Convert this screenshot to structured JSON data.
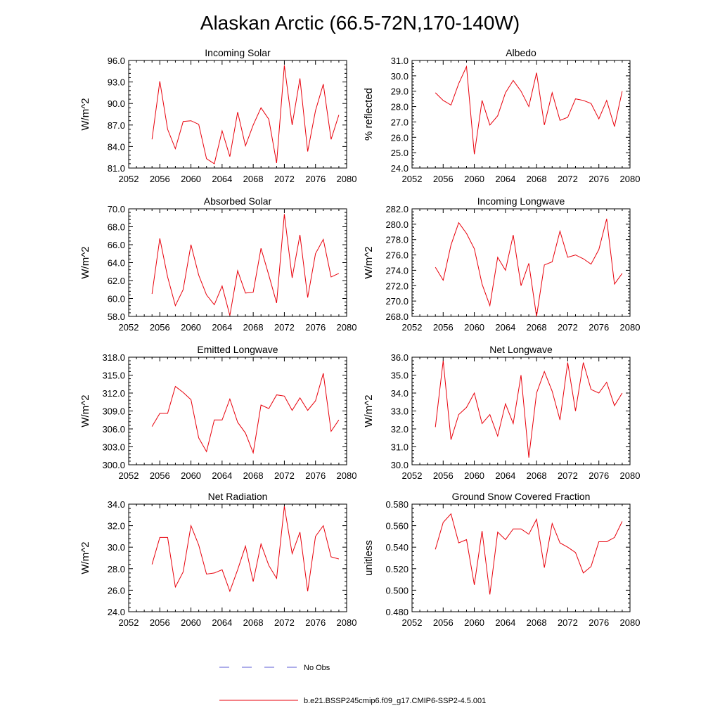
{
  "figure": {
    "title": "Alaskan Arctic (66.5-72N,170-140W)",
    "legend": [
      {
        "label": "No Obs",
        "color": "#5b5bd6",
        "style": "dashed"
      },
      {
        "label": "b.e21.BSSP245cmip6.f09_g17.CMIP6-SSP2-4.5.001",
        "color": "#e8000b",
        "style": "solid"
      }
    ]
  },
  "chart_data": [
    {
      "type": "line",
      "title": "Incoming Solar",
      "ylabel": "W/m^2",
      "ylim": [
        81.0,
        96.0
      ],
      "yticks": [
        "81.0",
        "84.0",
        "87.0",
        "90.0",
        "93.0",
        "96.0"
      ],
      "xlim": [
        2052,
        2080
      ],
      "xticks": [
        "2052",
        "2056",
        "2060",
        "2064",
        "2068",
        "2072",
        "2076",
        "2080"
      ],
      "color": "#e8000b",
      "x": [
        2055,
        2056,
        2057,
        2058,
        2059,
        2060,
        2061,
        2062,
        2063,
        2064,
        2065,
        2066,
        2067,
        2068,
        2069,
        2070,
        2071,
        2072,
        2073,
        2074,
        2075,
        2076,
        2077,
        2078,
        2079
      ],
      "y": [
        85.0,
        93.1,
        86.4,
        83.7,
        87.5,
        87.6,
        87.1,
        82.3,
        81.6,
        86.2,
        82.6,
        88.8,
        84.1,
        87.0,
        89.4,
        87.8,
        81.7,
        95.3,
        87.0,
        93.5,
        83.3,
        89.0,
        92.7,
        85.0,
        88.4
      ]
    },
    {
      "type": "line",
      "title": "Albedo",
      "ylabel": "% reflected",
      "ylim": [
        24.0,
        31.0
      ],
      "yticks": [
        "24.0",
        "25.0",
        "26.0",
        "27.0",
        "28.0",
        "29.0",
        "30.0",
        "31.0"
      ],
      "xlim": [
        2052,
        2080
      ],
      "xticks": [
        "2052",
        "2056",
        "2060",
        "2064",
        "2068",
        "2072",
        "2076",
        "2080"
      ],
      "color": "#e8000b",
      "x": [
        2055,
        2056,
        2057,
        2058,
        2059,
        2060,
        2061,
        2062,
        2063,
        2064,
        2065,
        2066,
        2067,
        2068,
        2069,
        2070,
        2071,
        2072,
        2073,
        2074,
        2075,
        2076,
        2077,
        2078,
        2079
      ],
      "y": [
        28.9,
        28.4,
        28.1,
        29.5,
        30.6,
        24.9,
        28.4,
        26.8,
        27.4,
        28.9,
        29.7,
        29.0,
        28.0,
        30.2,
        26.8,
        28.9,
        27.1,
        27.3,
        28.5,
        28.4,
        28.2,
        27.2,
        28.4,
        26.7,
        29.0
      ]
    },
    {
      "type": "line",
      "title": "Absorbed Solar",
      "ylabel": "W/m^2",
      "ylim": [
        58.0,
        70.0
      ],
      "yticks": [
        "58.0",
        "60.0",
        "62.0",
        "64.0",
        "66.0",
        "68.0",
        "70.0"
      ],
      "xlim": [
        2052,
        2080
      ],
      "xticks": [
        "2052",
        "2056",
        "2060",
        "2064",
        "2068",
        "2072",
        "2076",
        "2080"
      ],
      "color": "#e8000b",
      "x": [
        2055,
        2056,
        2057,
        2058,
        2059,
        2060,
        2061,
        2062,
        2063,
        2064,
        2065,
        2066,
        2067,
        2068,
        2069,
        2070,
        2071,
        2072,
        2073,
        2074,
        2075,
        2076,
        2077,
        2078,
        2079
      ],
      "y": [
        60.5,
        66.7,
        62.4,
        59.2,
        61.0,
        66.0,
        62.6,
        60.4,
        59.3,
        61.4,
        58.1,
        63.1,
        60.6,
        60.7,
        65.6,
        62.6,
        59.5,
        69.4,
        62.3,
        67.1,
        60.1,
        65.0,
        66.6,
        62.4,
        62.8
      ]
    },
    {
      "type": "line",
      "title": "Incoming Longwave",
      "ylabel": "W/m^2",
      "ylim": [
        268.0,
        282.0
      ],
      "yticks": [
        "268.0",
        "270.0",
        "272.0",
        "274.0",
        "276.0",
        "278.0",
        "280.0",
        "282.0"
      ],
      "xlim": [
        2052,
        2080
      ],
      "xticks": [
        "2052",
        "2056",
        "2060",
        "2064",
        "2068",
        "2072",
        "2076",
        "2080"
      ],
      "color": "#e8000b",
      "x": [
        2055,
        2056,
        2057,
        2058,
        2059,
        2060,
        2061,
        2062,
        2063,
        2064,
        2065,
        2066,
        2067,
        2068,
        2069,
        2070,
        2071,
        2072,
        2073,
        2074,
        2075,
        2076,
        2077,
        2078,
        2079
      ],
      "y": [
        274.4,
        272.7,
        277.3,
        280.2,
        278.8,
        276.8,
        272.2,
        269.4,
        275.7,
        274.0,
        278.6,
        272.0,
        274.9,
        268.0,
        274.7,
        275.1,
        279.1,
        275.7,
        276.0,
        275.5,
        274.8,
        276.7,
        280.7,
        272.2,
        273.6
      ]
    },
    {
      "type": "line",
      "title": "Emitted Longwave",
      "ylabel": "W/m^2",
      "ylim": [
        300.0,
        318.0
      ],
      "yticks": [
        "300.0",
        "303.0",
        "306.0",
        "309.0",
        "312.0",
        "315.0",
        "318.0"
      ],
      "xlim": [
        2052,
        2080
      ],
      "xticks": [
        "2052",
        "2056",
        "2060",
        "2064",
        "2068",
        "2072",
        "2076",
        "2080"
      ],
      "color": "#e8000b",
      "x": [
        2055,
        2056,
        2057,
        2058,
        2059,
        2060,
        2061,
        2062,
        2063,
        2064,
        2065,
        2066,
        2067,
        2068,
        2069,
        2070,
        2071,
        2072,
        2073,
        2074,
        2075,
        2076,
        2077,
        2078,
        2079
      ],
      "y": [
        306.4,
        308.6,
        308.6,
        313.1,
        312.1,
        310.9,
        304.5,
        302.2,
        307.5,
        307.5,
        311.0,
        307.1,
        305.3,
        302.0,
        310.0,
        309.4,
        311.7,
        311.5,
        309.1,
        311.2,
        309.1,
        310.7,
        315.3,
        305.6,
        307.5
      ]
    },
    {
      "type": "line",
      "title": "Net Longwave",
      "ylabel": "W/m^2",
      "ylim": [
        30.0,
        36.0
      ],
      "yticks": [
        "30.0",
        "31.0",
        "32.0",
        "33.0",
        "34.0",
        "35.0",
        "36.0"
      ],
      "xlim": [
        2052,
        2080
      ],
      "xticks": [
        "2052",
        "2056",
        "2060",
        "2064",
        "2068",
        "2072",
        "2076",
        "2080"
      ],
      "color": "#e8000b",
      "x": [
        2055,
        2056,
        2057,
        2058,
        2059,
        2060,
        2061,
        2062,
        2063,
        2064,
        2065,
        2066,
        2067,
        2068,
        2069,
        2070,
        2071,
        2072,
        2073,
        2074,
        2075,
        2076,
        2077,
        2078,
        2079
      ],
      "y": [
        32.1,
        35.8,
        31.4,
        32.8,
        33.2,
        34.0,
        32.3,
        32.8,
        31.6,
        33.4,
        32.3,
        35.0,
        30.4,
        34.0,
        35.2,
        34.1,
        32.5,
        35.7,
        33.0,
        35.7,
        34.2,
        34.0,
        34.6,
        33.3,
        34.0
      ]
    },
    {
      "type": "line",
      "title": "Net Radiation",
      "ylabel": "W/m^2",
      "ylim": [
        24.0,
        34.0
      ],
      "yticks": [
        "24.0",
        "26.0",
        "28.0",
        "30.0",
        "32.0",
        "34.0"
      ],
      "xlim": [
        2052,
        2080
      ],
      "xticks": [
        "2052",
        "2056",
        "2060",
        "2064",
        "2068",
        "2072",
        "2076",
        "2080"
      ],
      "color": "#e8000b",
      "x": [
        2055,
        2056,
        2057,
        2058,
        2059,
        2060,
        2061,
        2062,
        2063,
        2064,
        2065,
        2066,
        2067,
        2068,
        2069,
        2070,
        2071,
        2072,
        2073,
        2074,
        2075,
        2076,
        2077,
        2078,
        2079
      ],
      "y": [
        28.4,
        30.9,
        30.9,
        26.3,
        27.7,
        32.0,
        30.2,
        27.5,
        27.6,
        27.9,
        25.9,
        27.9,
        30.1,
        26.8,
        30.3,
        28.3,
        27.1,
        33.8,
        29.4,
        31.4,
        25.9,
        31.0,
        32.0,
        29.1,
        28.9
      ]
    },
    {
      "type": "line",
      "title": "Ground Snow Covered Fraction",
      "ylabel": "unitless",
      "ylim": [
        0.48,
        0.58
      ],
      "yticks": [
        "0.480",
        "0.500",
        "0.520",
        "0.540",
        "0.560",
        "0.580"
      ],
      "xlim": [
        2052,
        2080
      ],
      "xticks": [
        "2052",
        "2056",
        "2060",
        "2064",
        "2068",
        "2072",
        "2076",
        "2080"
      ],
      "color": "#e8000b",
      "x": [
        2055,
        2056,
        2057,
        2058,
        2059,
        2060,
        2061,
        2062,
        2063,
        2064,
        2065,
        2066,
        2067,
        2068,
        2069,
        2070,
        2071,
        2072,
        2073,
        2074,
        2075,
        2076,
        2077,
        2078,
        2079
      ],
      "y": [
        0.538,
        0.563,
        0.571,
        0.544,
        0.547,
        0.505,
        0.555,
        0.496,
        0.554,
        0.547,
        0.557,
        0.557,
        0.552,
        0.566,
        0.521,
        0.562,
        0.544,
        0.54,
        0.535,
        0.516,
        0.522,
        0.545,
        0.545,
        0.549,
        0.564
      ]
    }
  ]
}
